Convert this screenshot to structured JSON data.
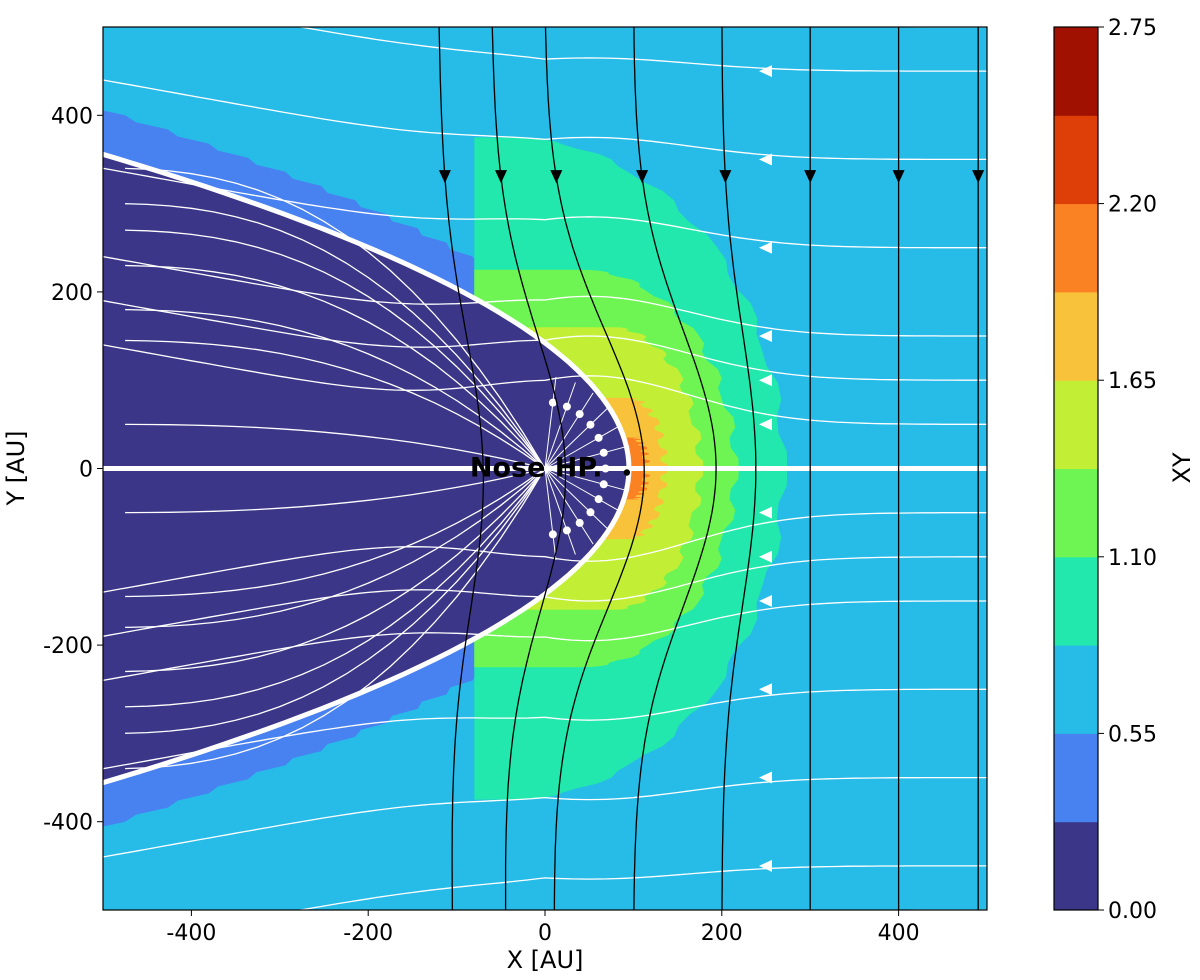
{
  "chart_data": {
    "type": "heatmap",
    "title": "",
    "xlabel": "X [AU]",
    "ylabel": "Y [AU]",
    "xlim": [
      -500,
      500
    ],
    "ylim": [
      -500,
      500
    ],
    "x_ticks": [
      -400,
      -200,
      0,
      200,
      400
    ],
    "y_ticks": [
      -400,
      -200,
      0,
      200,
      400
    ],
    "x_tick_labels": [
      "-400",
      "-200",
      "0",
      "200",
      "400"
    ],
    "y_tick_labels": [
      "-400",
      "-200",
      "0",
      "200",
      "400"
    ],
    "grid": false,
    "colorbar": {
      "label": "XY",
      "range": [
        0,
        2.75
      ],
      "tick_values": [
        0.0,
        0.55,
        1.1,
        1.65,
        2.2,
        2.75
      ],
      "tick_labels": [
        "0.00",
        "0.55",
        "1.10",
        "1.65",
        "2.20",
        "2.75"
      ],
      "levels": [
        0.0,
        0.275,
        0.55,
        0.825,
        1.1,
        1.375,
        1.65,
        1.925,
        2.2,
        2.475,
        2.75
      ],
      "colors": [
        "#3b3687",
        "#4881f0",
        "#27bbe8",
        "#22e8ad",
        "#6ff553",
        "#c2ef35",
        "#f8c33a",
        "#fb8222",
        "#de3f08",
        "#a01101"
      ],
      "position": "right"
    },
    "regions": [
      {
        "name": "outer-field",
        "level_band": 2,
        "color": "#27bbe8"
      },
      {
        "name": "heliopause-halo",
        "level_band": 1,
        "color": "#4881f0"
      },
      {
        "name": "heliosheath-interior",
        "level_band": 0,
        "color": "#3b3687"
      },
      {
        "name": "compression-outer",
        "level_band": 3,
        "color": "#22e8ad"
      },
      {
        "name": "compression-middle",
        "level_band": 4,
        "color": "#6ff553"
      },
      {
        "name": "compression-inner",
        "level_band": 5,
        "color": "#c2ef35"
      },
      {
        "name": "compression-core",
        "level_band": 6,
        "color": "#f8c33a"
      },
      {
        "name": "compression-peak",
        "level_band": 7,
        "color": "#fb8222"
      }
    ],
    "heliopause_nose_x": 95,
    "annotations": [
      {
        "text": "Nose HP.",
        "x": -85,
        "y": 0
      }
    ],
    "streamlines": {
      "flow_color": "#ffffff",
      "field_color": "#000000",
      "flow_lines_outside_y": [
        500,
        450,
        350,
        250,
        150,
        100,
        50,
        0,
        -50,
        -100,
        -150,
        -250,
        -350,
        -450,
        -500
      ],
      "field_lines_x_at_top": [
        -120,
        -60,
        0,
        100,
        200,
        300,
        400,
        490
      ],
      "field_lines_x_at_bottom": [
        -105,
        -45,
        10,
        100,
        200,
        300,
        400,
        490
      ]
    }
  }
}
